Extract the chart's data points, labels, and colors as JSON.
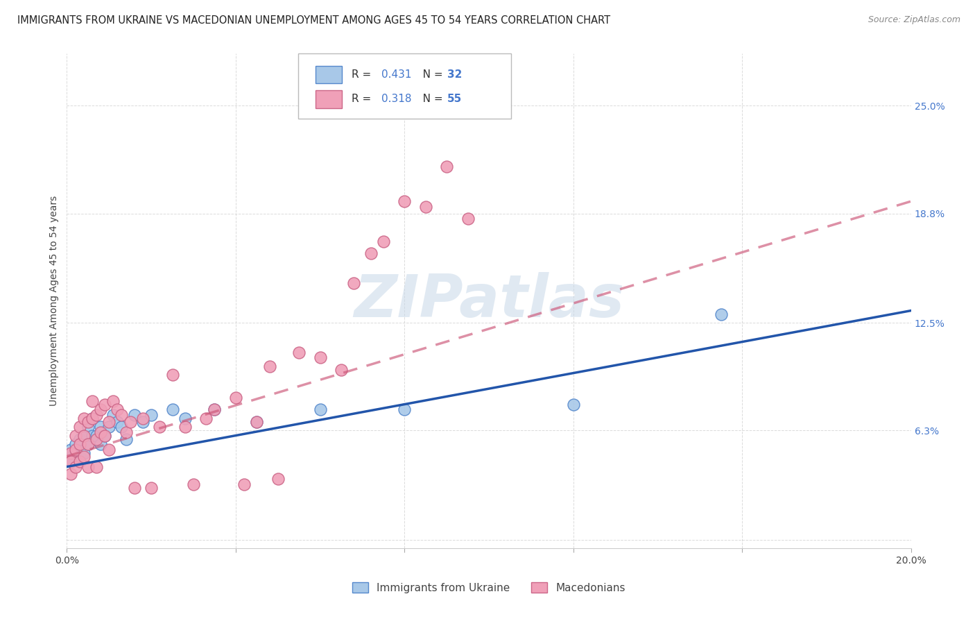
{
  "title": "IMMIGRANTS FROM UKRAINE VS MACEDONIAN UNEMPLOYMENT AMONG AGES 45 TO 54 YEARS CORRELATION CHART",
  "source": "Source: ZipAtlas.com",
  "ylabel": "Unemployment Among Ages 45 to 54 years",
  "xlim": [
    0.0,
    0.2
  ],
  "ylim": [
    -0.005,
    0.28
  ],
  "xtick_positions": [
    0.0,
    0.04,
    0.08,
    0.12,
    0.16,
    0.2
  ],
  "xtick_labels": [
    "0.0%",
    "",
    "",
    "",
    "",
    "20.0%"
  ],
  "ytick_values": [
    0.0,
    0.063,
    0.125,
    0.188,
    0.25
  ],
  "ytick_labels": [
    "",
    "6.3%",
    "12.5%",
    "18.8%",
    "25.0%"
  ],
  "ukraine_fill": "#a8c8e8",
  "ukraine_edge": "#5588cc",
  "macedonian_fill": "#f0a0b8",
  "macedonian_edge": "#cc6688",
  "ukraine_line_color": "#2255aa",
  "macedonian_line_color": "#cc5577",
  "macedonian_line_dash": "#ccaabb",
  "watermark": "ZIPatlas",
  "watermark_color": "#c8d8e8",
  "legend_bottom_ukraine": "Immigrants from Ukraine",
  "legend_bottom_macedonian": "Macedonians",
  "background_color": "#ffffff",
  "grid_color": "#cccccc",
  "title_fontsize": 10.5,
  "tick_fontsize": 10,
  "ukraine_scatter_x": [
    0.001,
    0.001,
    0.002,
    0.002,
    0.003,
    0.003,
    0.004,
    0.004,
    0.005,
    0.005,
    0.006,
    0.006,
    0.007,
    0.008,
    0.008,
    0.009,
    0.01,
    0.011,
    0.012,
    0.013,
    0.014,
    0.016,
    0.018,
    0.02,
    0.025,
    0.028,
    0.035,
    0.045,
    0.06,
    0.08,
    0.12,
    0.155
  ],
  "ukraine_scatter_y": [
    0.052,
    0.045,
    0.05,
    0.055,
    0.048,
    0.058,
    0.06,
    0.05,
    0.055,
    0.065,
    0.06,
    0.07,
    0.06,
    0.055,
    0.065,
    0.06,
    0.065,
    0.072,
    0.068,
    0.065,
    0.058,
    0.072,
    0.068,
    0.072,
    0.075,
    0.07,
    0.075,
    0.068,
    0.075,
    0.075,
    0.078,
    0.13
  ],
  "macedonian_scatter_x": [
    0.001,
    0.001,
    0.001,
    0.002,
    0.002,
    0.002,
    0.003,
    0.003,
    0.003,
    0.004,
    0.004,
    0.004,
    0.005,
    0.005,
    0.005,
    0.006,
    0.006,
    0.007,
    0.007,
    0.007,
    0.008,
    0.008,
    0.009,
    0.009,
    0.01,
    0.01,
    0.011,
    0.012,
    0.013,
    0.014,
    0.015,
    0.016,
    0.018,
    0.02,
    0.022,
    0.025,
    0.028,
    0.03,
    0.033,
    0.035,
    0.04,
    0.042,
    0.045,
    0.048,
    0.05,
    0.055,
    0.06,
    0.065,
    0.068,
    0.072,
    0.075,
    0.08,
    0.085,
    0.09,
    0.095
  ],
  "macedonian_scatter_y": [
    0.05,
    0.045,
    0.038,
    0.06,
    0.052,
    0.042,
    0.055,
    0.065,
    0.045,
    0.06,
    0.07,
    0.048,
    0.055,
    0.068,
    0.042,
    0.07,
    0.08,
    0.072,
    0.058,
    0.042,
    0.075,
    0.062,
    0.078,
    0.06,
    0.068,
    0.052,
    0.08,
    0.075,
    0.072,
    0.062,
    0.068,
    0.03,
    0.07,
    0.03,
    0.065,
    0.095,
    0.065,
    0.032,
    0.07,
    0.075,
    0.082,
    0.032,
    0.068,
    0.1,
    0.035,
    0.108,
    0.105,
    0.098,
    0.148,
    0.165,
    0.172,
    0.195,
    0.192,
    0.215,
    0.185
  ],
  "ukraine_line_x": [
    0.0,
    0.2
  ],
  "ukraine_line_y": [
    0.042,
    0.132
  ],
  "macedonian_line_x": [
    0.0,
    0.2
  ],
  "macedonian_line_y": [
    0.048,
    0.195
  ],
  "R_ukraine": "0.431",
  "N_ukraine": "32",
  "R_macedonian": "0.318",
  "N_macedonian": "55",
  "accent_color": "#4477cc"
}
